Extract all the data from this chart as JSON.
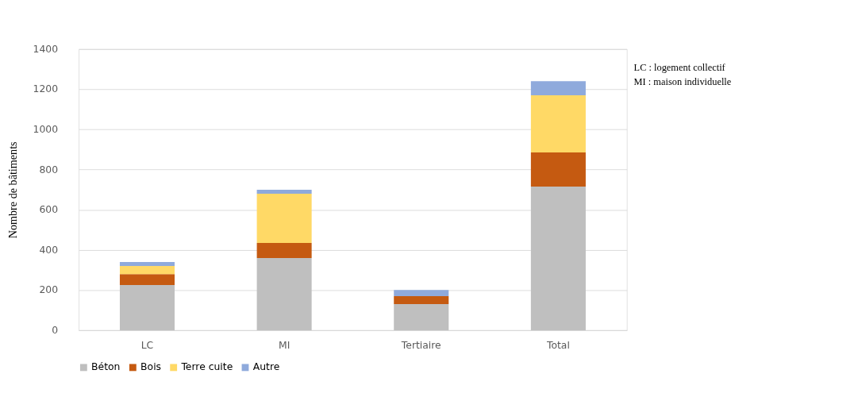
{
  "chart_data": {
    "type": "bar",
    "stacked": true,
    "ylabel": "Nombre de bâtiments",
    "categories": [
      "LC",
      "MI",
      "Tertiaire",
      "Total"
    ],
    "series": [
      {
        "name": "Béton",
        "color": "#bfbfbf",
        "values": [
          225,
          360,
          130,
          715
        ]
      },
      {
        "name": "Bois",
        "color": "#c55a11",
        "values": [
          55,
          75,
          40,
          170
        ]
      },
      {
        "name": "Terre cuite",
        "color": "#ffd966",
        "values": [
          40,
          245,
          0,
          285
        ]
      },
      {
        "name": "Autre",
        "color": "#8faadc",
        "values": [
          20,
          20,
          30,
          70
        ]
      }
    ],
    "ylim": [
      0,
      1400
    ],
    "yticks": [
      0,
      200,
      400,
      600,
      800,
      1000,
      1200,
      1400
    ],
    "grid": "y",
    "legend": "bottom",
    "annotations": [
      "LC : logement collectif",
      "MI : maison individuelle"
    ]
  }
}
